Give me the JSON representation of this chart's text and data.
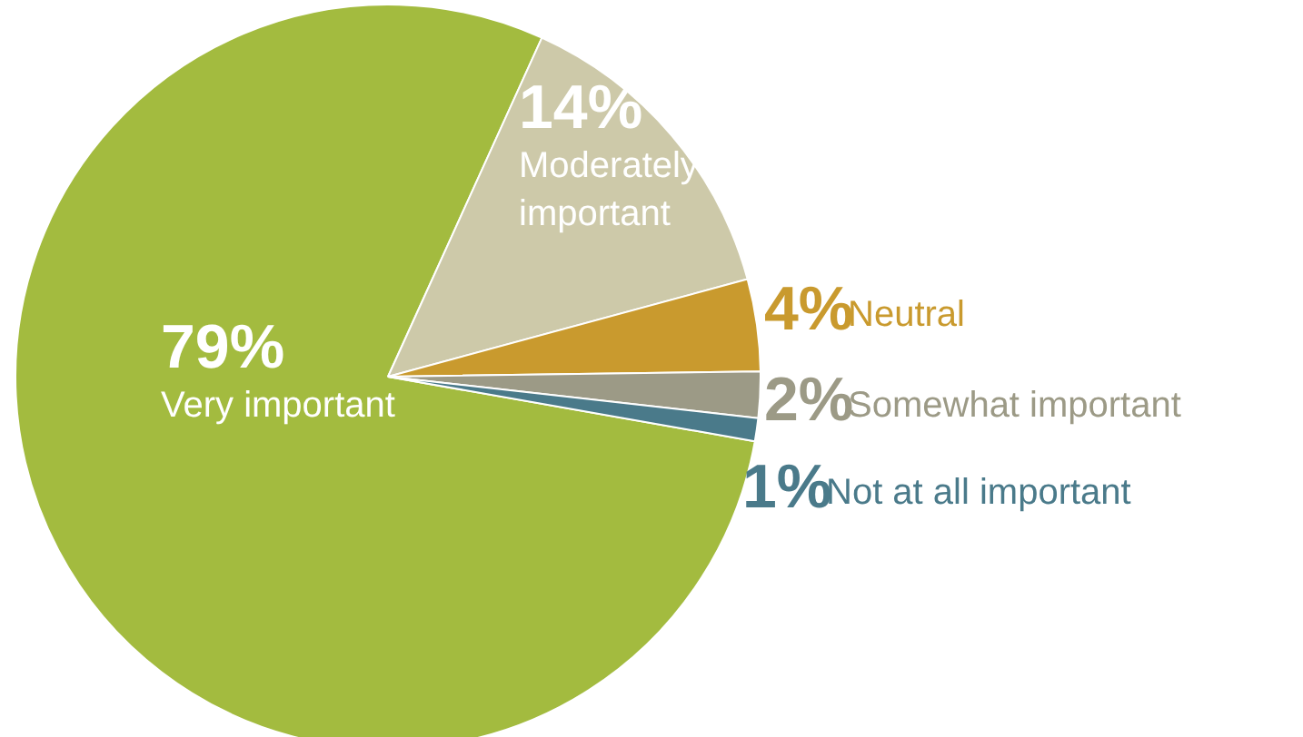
{
  "chart_data": {
    "type": "pie",
    "categories": [
      "Very important",
      "Moderately important",
      "Neutral",
      "Somewhat important",
      "Not at all important"
    ],
    "values": [
      79,
      14,
      4,
      2,
      1
    ],
    "colors": [
      "#a3bb3f",
      "#cdc9a9",
      "#c99a2e",
      "#9c9a86",
      "#4a7a8a"
    ],
    "value_labels": [
      "79%",
      "14%",
      "4%",
      "2%",
      "1%"
    ]
  }
}
